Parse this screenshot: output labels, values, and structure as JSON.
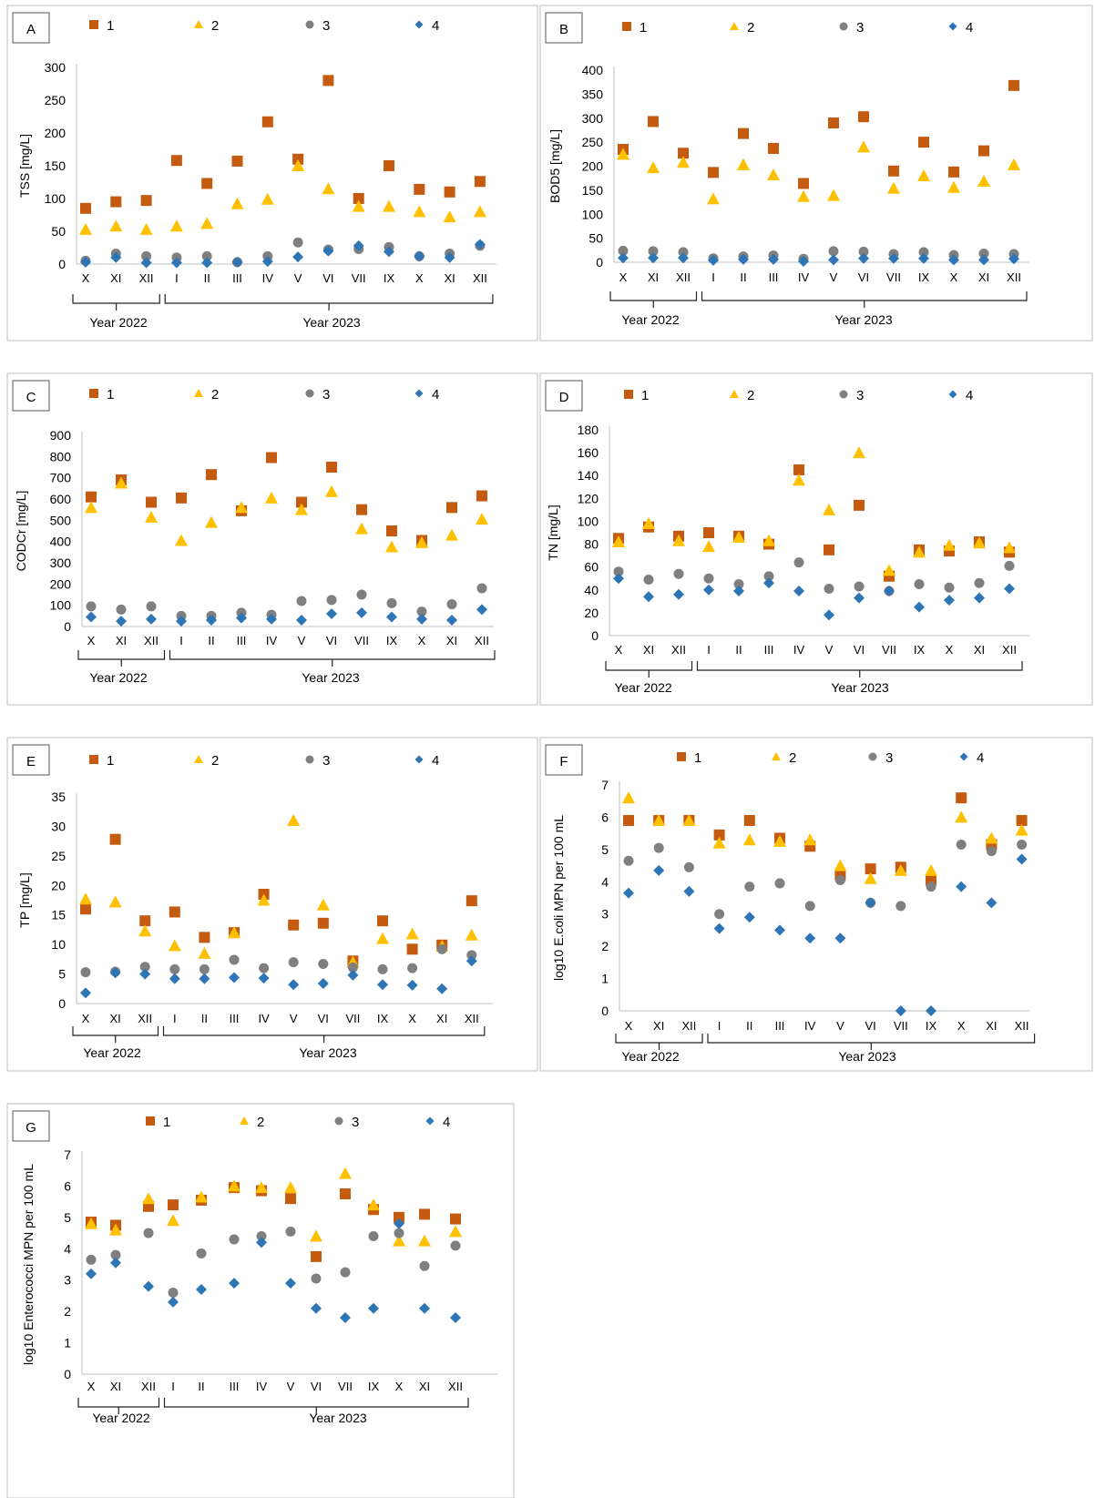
{
  "months": [
    "X",
    "XI",
    "XII",
    "I",
    "II",
    "III",
    "IV",
    "V",
    "VI",
    "VII",
    "IX",
    "X",
    "XI",
    "XII"
  ],
  "year_labels": [
    "Year 2022",
    "Year 2023"
  ],
  "legend": [
    "1",
    "2",
    "3",
    "4"
  ],
  "colors": {
    "s1": "#c55a11",
    "s2": "#ffc000",
    "s3": "#7f7f7f",
    "s4": "#2e75b6"
  },
  "chart_data": [
    {
      "id": "A",
      "type": "scatter",
      "title": "",
      "ylabel": "TSS [mg/L]",
      "ylim": [
        0,
        300
      ],
      "yticks": [
        0,
        50,
        100,
        150,
        200,
        250,
        300
      ],
      "series": [
        {
          "name": "1",
          "values": [
            85,
            95,
            97,
            158,
            123,
            157,
            217,
            160,
            280,
            100,
            150,
            114,
            110,
            126
          ]
        },
        {
          "name": "2",
          "values": [
            53,
            58,
            53,
            58,
            62,
            92,
            99,
            150,
            115,
            88,
            88,
            80,
            72,
            80
          ]
        },
        {
          "name": "3",
          "values": [
            5,
            16,
            12,
            10,
            12,
            3,
            12,
            33,
            22,
            23,
            26,
            12,
            16,
            28
          ]
        },
        {
          "name": "4",
          "values": [
            3,
            10,
            2,
            2,
            2,
            3,
            4,
            11,
            20,
            28,
            19,
            12,
            10,
            30
          ]
        }
      ]
    },
    {
      "id": "B",
      "type": "scatter",
      "title": "",
      "ylabel": "BOD5 [mg/L]",
      "ylim": [
        0,
        400
      ],
      "yticks": [
        0,
        50,
        100,
        150,
        200,
        250,
        300,
        350,
        400
      ],
      "series": [
        {
          "name": "1",
          "values": [
            235,
            293,
            227,
            187,
            268,
            237,
            164,
            290,
            303,
            190,
            250,
            188,
            232,
            368
          ]
        },
        {
          "name": "2",
          "values": [
            225,
            197,
            208,
            132,
            203,
            182,
            137,
            139,
            240,
            154,
            180,
            156,
            169,
            203
          ]
        },
        {
          "name": "3",
          "values": [
            24,
            23,
            21,
            8,
            12,
            14,
            7,
            23,
            22,
            17,
            21,
            15,
            18,
            17
          ]
        },
        {
          "name": "4",
          "values": [
            9,
            9,
            9,
            4,
            6,
            6,
            2,
            5,
            8,
            8,
            8,
            5,
            5,
            7
          ]
        }
      ]
    },
    {
      "id": "C",
      "type": "scatter",
      "title": "",
      "ylabel": "CODCr [mg/L]",
      "ylim": [
        0,
        900
      ],
      "yticks": [
        0,
        100,
        200,
        300,
        400,
        500,
        600,
        700,
        800,
        900
      ],
      "series": [
        {
          "name": "1",
          "values": [
            610,
            690,
            585,
            605,
            715,
            545,
            795,
            585,
            750,
            550,
            450,
            405,
            560,
            615
          ]
        },
        {
          "name": "2",
          "values": [
            560,
            675,
            515,
            405,
            490,
            560,
            605,
            550,
            635,
            460,
            375,
            395,
            430,
            505
          ]
        },
        {
          "name": "3",
          "values": [
            95,
            80,
            95,
            50,
            50,
            65,
            55,
            120,
            125,
            150,
            110,
            70,
            105,
            180
          ]
        },
        {
          "name": "4",
          "values": [
            45,
            25,
            35,
            25,
            30,
            40,
            35,
            30,
            60,
            65,
            45,
            35,
            30,
            80
          ]
        }
      ]
    },
    {
      "id": "D",
      "type": "scatter",
      "title": "",
      "ylabel": "TN [mg/L]",
      "ylim": [
        0,
        180
      ],
      "yticks": [
        0,
        20,
        40,
        60,
        80,
        100,
        120,
        140,
        160,
        180
      ],
      "series": [
        {
          "name": "1",
          "values": [
            85,
            95,
            87,
            90,
            87,
            80,
            145,
            75,
            114,
            52,
            75,
            74,
            82,
            73
          ]
        },
        {
          "name": "2",
          "values": [
            82,
            98,
            83,
            78,
            86,
            83,
            136,
            110,
            160,
            57,
            73,
            79,
            81,
            77
          ]
        },
        {
          "name": "3",
          "values": [
            56,
            49,
            54,
            50,
            45,
            52,
            64,
            41,
            43,
            39,
            45,
            42,
            46,
            61
          ]
        },
        {
          "name": "4",
          "values": [
            50,
            34,
            36,
            40,
            39,
            46,
            39,
            18,
            33,
            39,
            25,
            31,
            33,
            41
          ]
        }
      ]
    },
    {
      "id": "E",
      "type": "scatter",
      "title": "",
      "ylabel": "TP [mg/L]",
      "ylim": [
        0,
        35
      ],
      "yticks": [
        0,
        5,
        10,
        15,
        20,
        25,
        30,
        35
      ],
      "series": [
        {
          "name": "1",
          "values": [
            16,
            27.8,
            14,
            15.5,
            11.2,
            12,
            18.5,
            13.3,
            13.6,
            7.2,
            14,
            9.2,
            9.9,
            17.4
          ]
        },
        {
          "name": "2",
          "values": [
            17.7,
            17.2,
            12.3,
            9.8,
            8.5,
            12,
            17.5,
            31,
            16.7,
            7,
            11,
            11.8,
            9.7,
            11.6
          ]
        },
        {
          "name": "3",
          "values": [
            5.3,
            5.4,
            6.2,
            5.8,
            5.8,
            7.4,
            6,
            7,
            6.7,
            6.1,
            5.8,
            6,
            9.2,
            8.2
          ]
        },
        {
          "name": "4",
          "values": [
            1.8,
            5.2,
            5,
            4.2,
            4.2,
            4.4,
            4.3,
            3.2,
            3.4,
            4.8,
            3.2,
            3.1,
            2.5,
            7.2
          ]
        }
      ]
    },
    {
      "id": "F",
      "type": "scatter",
      "title": "",
      "ylabel": "log10 E.coli MPN per 100 mL",
      "ylim": [
        0,
        7
      ],
      "yticks": [
        0,
        1,
        2,
        3,
        4,
        5,
        6,
        7
      ],
      "series": [
        {
          "name": "1",
          "values": [
            5.9,
            5.9,
            5.9,
            5.45,
            5.9,
            5.35,
            5.1,
            4.2,
            4.4,
            4.45,
            4.05,
            6.6,
            5.15,
            5.9
          ]
        },
        {
          "name": "2",
          "values": [
            6.6,
            5.9,
            5.9,
            5.2,
            5.3,
            5.25,
            5.3,
            4.5,
            4.1,
            4.35,
            4.35,
            6,
            5.35,
            5.6
          ]
        },
        {
          "name": "3",
          "values": [
            4.65,
            5.05,
            4.45,
            3.0,
            3.85,
            3.95,
            3.25,
            4.05,
            3.35,
            3.25,
            3.85,
            5.15,
            4.95,
            5.15
          ]
        },
        {
          "name": "4",
          "values": [
            3.65,
            4.35,
            3.7,
            2.55,
            2.9,
            2.5,
            2.25,
            2.25,
            3.35,
            0,
            0,
            3.85,
            3.35,
            4.7
          ]
        }
      ]
    },
    {
      "id": "G",
      "type": "scatter",
      "title": "",
      "ylabel": "log10 Enterococci MPN per 100 mL",
      "ylim": [
        0,
        7
      ],
      "yticks": [
        0,
        1,
        2,
        3,
        4,
        5,
        6,
        7
      ],
      "series": [
        {
          "name": "1",
          "values": [
            4.85,
            4.75,
            5.35,
            5.4,
            5.55,
            5.95,
            5.85,
            5.6,
            3.75,
            5.75,
            5.25,
            5.0,
            5.1,
            4.95
          ]
        },
        {
          "name": "2",
          "values": [
            4.8,
            4.6,
            5.6,
            4.9,
            5.65,
            6.0,
            5.95,
            5.95,
            4.4,
            6.4,
            5.4,
            4.25,
            4.25,
            4.55
          ]
        },
        {
          "name": "3",
          "values": [
            3.65,
            3.8,
            4.5,
            2.6,
            3.85,
            4.3,
            4.4,
            4.55,
            3.05,
            3.25,
            4.4,
            4.5,
            3.45,
            4.1
          ]
        },
        {
          "name": "4",
          "values": [
            3.2,
            3.55,
            2.8,
            2.3,
            2.7,
            2.9,
            4.2,
            2.9,
            2.1,
            1.8,
            2.1,
            4.8,
            2.1,
            1.8
          ]
        }
      ]
    }
  ]
}
